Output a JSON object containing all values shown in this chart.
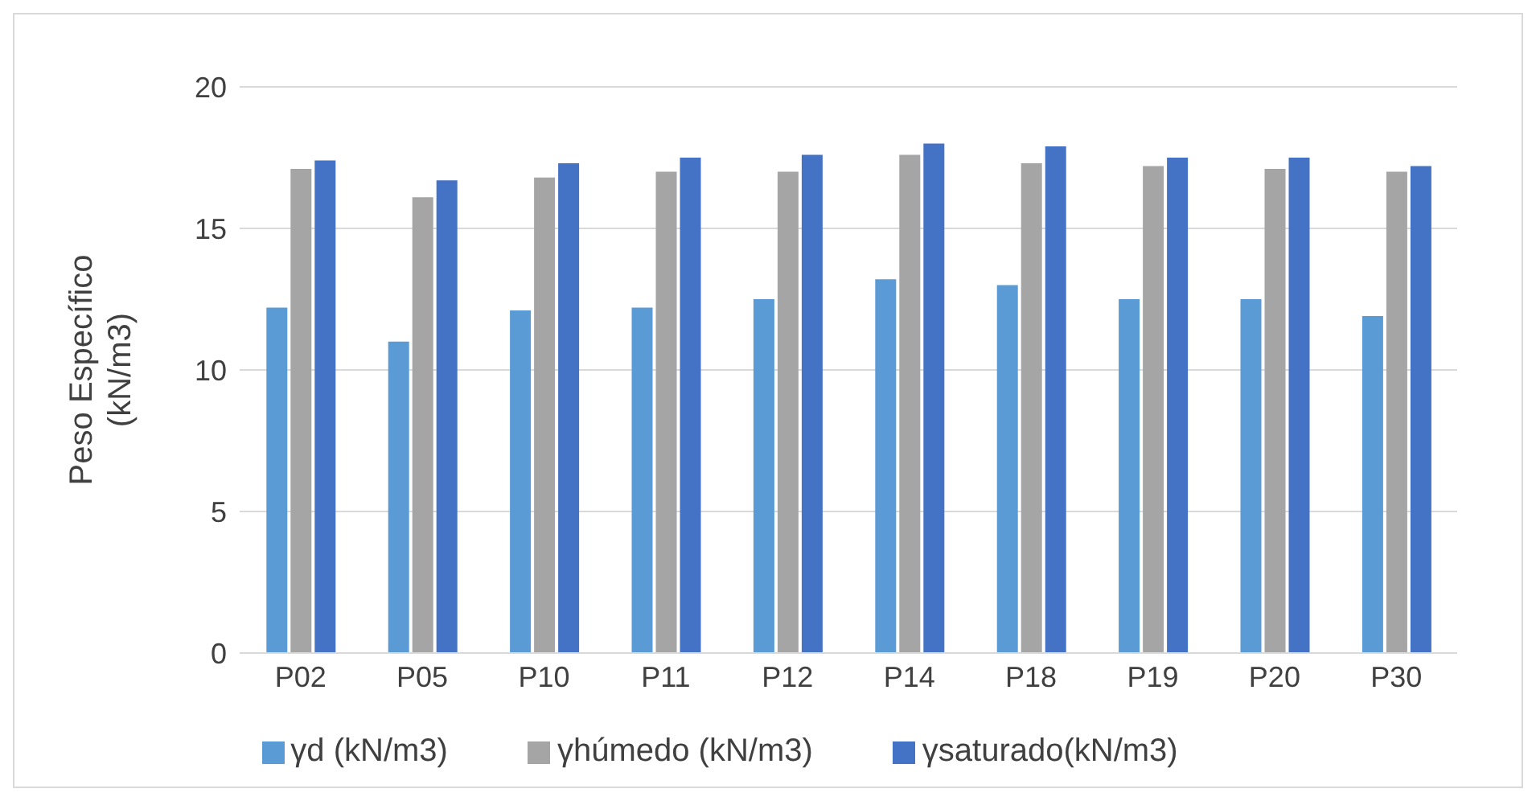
{
  "chart_data": {
    "type": "bar",
    "ylabel": "Peso Específico\n(kN/m3)",
    "categories": [
      "P02",
      "P05",
      "P10",
      "P11",
      "P12",
      "P14",
      "P18",
      "P19",
      "P20",
      "P30"
    ],
    "series": [
      {
        "name": "γd (kN/m3)",
        "color": "#5b9bd5",
        "values": [
          12.2,
          11.0,
          12.1,
          12.2,
          12.5,
          13.2,
          13.0,
          12.5,
          12.5,
          11.9
        ]
      },
      {
        "name": "γhúmedo (kN/m3)",
        "color": "#a5a5a5",
        "values": [
          17.1,
          16.1,
          16.8,
          17.0,
          17.0,
          17.6,
          17.3,
          17.2,
          17.1,
          17.0
        ]
      },
      {
        "name": "γsaturado(kN/m3)",
        "color": "#4472c4",
        "values": [
          17.4,
          16.7,
          17.3,
          17.5,
          17.6,
          18.0,
          17.9,
          17.5,
          17.5,
          17.2
        ]
      }
    ],
    "ylim": [
      0,
      20
    ],
    "yticks": [
      0,
      5,
      10,
      15,
      20
    ],
    "grid": "y",
    "legend": "bottom"
  }
}
